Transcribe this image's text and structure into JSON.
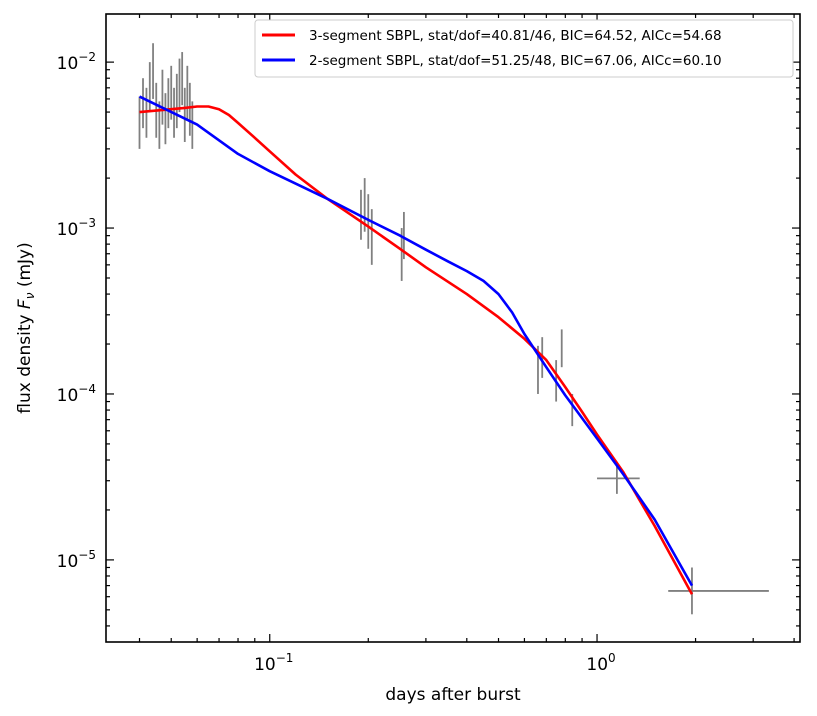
{
  "chart_data": {
    "type": "line",
    "x_scale": "log",
    "y_scale": "log",
    "xlabel": "days after burst",
    "ylabel": "flux density",
    "ylabel_symbol": "F",
    "ylabel_subscript": "ν",
    "ylabel_unit": "(mJy)",
    "xlim": [
      0.0316,
      4.17
    ],
    "ylim": [
      3.2e-06,
      0.0195
    ],
    "x_tick_labels": [
      {
        "value": 0.1,
        "mantissa": "10",
        "exponent": "−1"
      },
      {
        "value": 1,
        "mantissa": "10",
        "exponent": "0"
      }
    ],
    "y_tick_labels": [
      {
        "value": 1e-05,
        "mantissa": "10",
        "exponent": "−5"
      },
      {
        "value": 0.0001,
        "mantissa": "10",
        "exponent": "−4"
      },
      {
        "value": 0.001,
        "mantissa": "10",
        "exponent": "−3"
      },
      {
        "value": 0.01,
        "mantissa": "10",
        "exponent": "−2"
      }
    ],
    "grid": false,
    "legend_position": "top-right",
    "series": [
      {
        "name": "3-segment SBPL, stat/dof=40.81/46, BIC=64.52, AICc=54.68",
        "color": "#ff0000",
        "points": [
          [
            0.04,
            0.005
          ],
          [
            0.045,
            0.0051
          ],
          [
            0.05,
            0.0052
          ],
          [
            0.055,
            0.0053
          ],
          [
            0.06,
            0.0054
          ],
          [
            0.065,
            0.0054
          ],
          [
            0.07,
            0.0052
          ],
          [
            0.075,
            0.0048
          ],
          [
            0.08,
            0.0043
          ],
          [
            0.09,
            0.0035
          ],
          [
            0.1,
            0.0029
          ],
          [
            0.12,
            0.0021
          ],
          [
            0.15,
            0.0015
          ],
          [
            0.2,
            0.00102
          ],
          [
            0.25,
            0.00075
          ],
          [
            0.3,
            0.00058
          ],
          [
            0.4,
            0.0004
          ],
          [
            0.5,
            0.00029
          ],
          [
            0.6,
            0.000215
          ],
          [
            0.7,
            0.00016
          ],
          [
            0.8,
            0.00011
          ],
          [
            0.9,
            7.8e-05
          ],
          [
            1.0,
            5.7e-05
          ],
          [
            1.2,
            3.4e-05
          ],
          [
            1.5,
            1.6e-05
          ],
          [
            1.95,
            6.2e-06
          ]
        ]
      },
      {
        "name": "2-segment SBPL, stat/dof=51.25/48, BIC=67.06, AICc=60.10",
        "color": "#0000ff",
        "points": [
          [
            0.04,
            0.0062
          ],
          [
            0.06,
            0.0042
          ],
          [
            0.08,
            0.0028
          ],
          [
            0.1,
            0.0022
          ],
          [
            0.15,
            0.0015
          ],
          [
            0.2,
            0.00112
          ],
          [
            0.25,
            0.0009
          ],
          [
            0.3,
            0.00074
          ],
          [
            0.35,
            0.00063
          ],
          [
            0.4,
            0.00055
          ],
          [
            0.45,
            0.00048
          ],
          [
            0.5,
            0.0004
          ],
          [
            0.55,
            0.00031
          ],
          [
            0.6,
            0.00023
          ],
          [
            0.7,
            0.000145
          ],
          [
            0.8,
            9.8e-05
          ],
          [
            1.0,
            5.4e-05
          ],
          [
            1.2,
            3.3e-05
          ],
          [
            1.5,
            1.75e-05
          ],
          [
            1.95,
            7e-06
          ]
        ]
      }
    ],
    "data_points_color": "#808080",
    "data_points": [
      {
        "x": 0.04,
        "y": 0.0042,
        "ylo": 0.003,
        "yhi": 0.0062
      },
      {
        "x": 0.041,
        "y": 0.0055,
        "ylo": 0.004,
        "yhi": 0.008
      },
      {
        "x": 0.042,
        "y": 0.0048,
        "ylo": 0.0035,
        "yhi": 0.007
      },
      {
        "x": 0.043,
        "y": 0.0072,
        "ylo": 0.005,
        "yhi": 0.01
      },
      {
        "x": 0.044,
        "y": 0.009,
        "ylo": 0.006,
        "yhi": 0.013
      },
      {
        "x": 0.045,
        "y": 0.005,
        "ylo": 0.0035,
        "yhi": 0.0075
      },
      {
        "x": 0.046,
        "y": 0.004,
        "ylo": 0.003,
        "yhi": 0.0058
      },
      {
        "x": 0.047,
        "y": 0.006,
        "ylo": 0.0042,
        "yhi": 0.009
      },
      {
        "x": 0.048,
        "y": 0.0045,
        "ylo": 0.0032,
        "yhi": 0.0065
      },
      {
        "x": 0.049,
        "y": 0.0055,
        "ylo": 0.004,
        "yhi": 0.008
      },
      {
        "x": 0.05,
        "y": 0.0065,
        "ylo": 0.0045,
        "yhi": 0.0095
      },
      {
        "x": 0.051,
        "y": 0.005,
        "ylo": 0.0035,
        "yhi": 0.007
      },
      {
        "x": 0.052,
        "y": 0.0058,
        "ylo": 0.004,
        "yhi": 0.0085
      },
      {
        "x": 0.053,
        "y": 0.0075,
        "ylo": 0.005,
        "yhi": 0.0105
      },
      {
        "x": 0.054,
        "y": 0.008,
        "ylo": 0.0055,
        "yhi": 0.0115
      },
      {
        "x": 0.055,
        "y": 0.0048,
        "ylo": 0.0033,
        "yhi": 0.007
      },
      {
        "x": 0.056,
        "y": 0.0065,
        "ylo": 0.0045,
        "yhi": 0.0095
      },
      {
        "x": 0.057,
        "y": 0.0052,
        "ylo": 0.0036,
        "yhi": 0.0075
      },
      {
        "x": 0.058,
        "y": 0.004,
        "ylo": 0.003,
        "yhi": 0.0058
      },
      {
        "x": 0.19,
        "y": 0.0012,
        "ylo": 0.00085,
        "yhi": 0.0017
      },
      {
        "x": 0.195,
        "y": 0.0014,
        "ylo": 0.00095,
        "yhi": 0.002
      },
      {
        "x": 0.2,
        "y": 0.0011,
        "ylo": 0.00075,
        "yhi": 0.0016
      },
      {
        "x": 0.205,
        "y": 0.00095,
        "ylo": 0.0006,
        "yhi": 0.0013
      },
      {
        "x": 0.253,
        "y": 0.0007,
        "ylo": 0.00048,
        "yhi": 0.001
      },
      {
        "x": 0.257,
        "y": 0.0009,
        "ylo": 0.00065,
        "yhi": 0.00125
      },
      {
        "x": 0.66,
        "y": 0.00014,
        "ylo": 0.0001,
        "yhi": 0.000195
      },
      {
        "x": 0.68,
        "y": 0.00017,
        "ylo": 0.000125,
        "yhi": 0.00022
      },
      {
        "x": 0.75,
        "y": 0.00012,
        "ylo": 9e-05,
        "yhi": 0.00016
      },
      {
        "x": 0.78,
        "y": 0.00019,
        "ylo": 0.000145,
        "yhi": 0.000245
      },
      {
        "x": 0.84,
        "y": 8.5e-05,
        "ylo": 6.4e-05,
        "yhi": 0.0001
      },
      {
        "x": 1.15,
        "y": 3.1e-05,
        "ylo": 2.5e-05,
        "yhi": 3.9e-05,
        "xlo": 1.0,
        "xhi": 1.35
      },
      {
        "x": 1.95,
        "y": 6.5e-06,
        "ylo": 4.7e-06,
        "yhi": 9e-06,
        "xlo": 1.65,
        "xhi": 3.35
      }
    ]
  }
}
